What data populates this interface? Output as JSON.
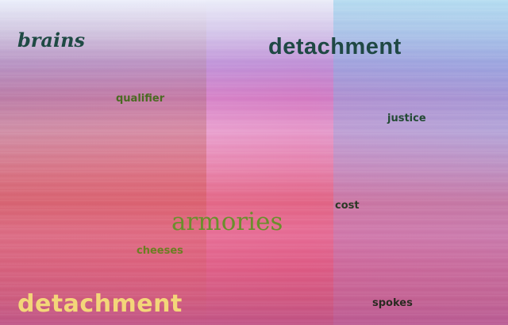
{
  "words": {
    "brains": "brains",
    "detachment_top": "detachment",
    "qualifier": "qualifier",
    "justice": "justice",
    "cost": "cost",
    "armories": "armories",
    "cheeses": "cheeses",
    "detachment_bottom": "detachment",
    "spokes": "spokes"
  },
  "colors": {
    "dark_teal": "#1f4844",
    "olive": "#6a8f2c",
    "yellow": "#f3d679"
  }
}
